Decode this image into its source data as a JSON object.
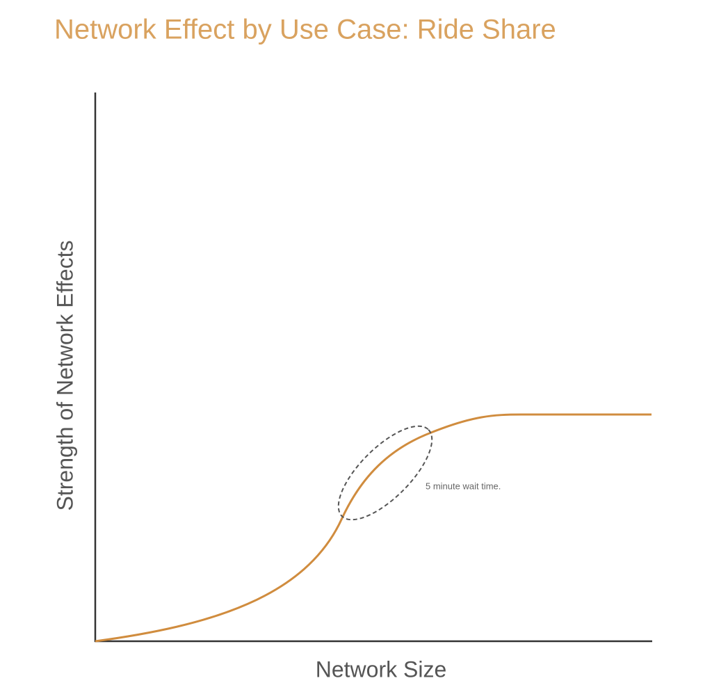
{
  "title": "Network Effect by Use Case: Ride Share",
  "x_axis_label": "Network Size",
  "y_axis_label": "Strength of Network Effects",
  "annotation": "5 minute wait time."
}
